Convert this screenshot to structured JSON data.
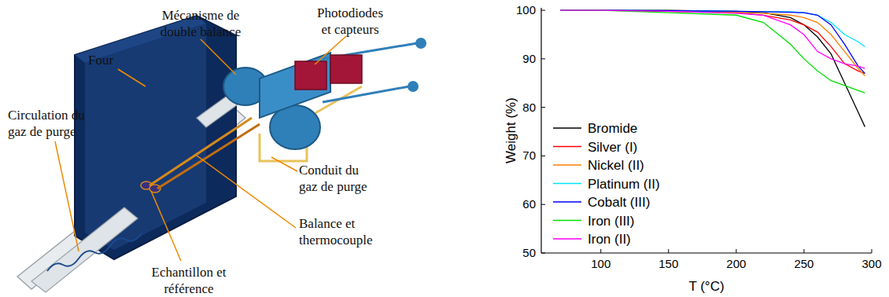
{
  "diagram": {
    "labels": [
      {
        "lines": [
          "Mécanisme de",
          "double balance"
        ]
      },
      {
        "lines": [
          "Photodiodes",
          "et capteurs"
        ]
      },
      {
        "lines": [
          "Four"
        ]
      },
      {
        "lines": [
          "Circulation du",
          "gaz de purge"
        ]
      },
      {
        "lines": [
          "Conduit du",
          "gaz de purge"
        ]
      },
      {
        "lines": [
          "Balance et",
          "thermocouple"
        ]
      },
      {
        "lines": [
          "Echantillon et",
          "référence"
        ]
      }
    ]
  },
  "chart_data": {
    "type": "line",
    "x_label": "T (°C)",
    "y_label": "Weight (%)",
    "x": [
      70,
      100,
      150,
      200,
      220,
      240,
      250,
      260,
      270,
      280,
      290,
      295
    ],
    "series": [
      {
        "name": "Bromide",
        "color": "#000000",
        "values": [
          100,
          100,
          100,
          99.8,
          99.5,
          98.5,
          97,
          94.5,
          91,
          85,
          79,
          76
        ]
      },
      {
        "name": "Silver (I)",
        "color": "#ff0000",
        "values": [
          100,
          100,
          99.8,
          99.5,
          99,
          98,
          97,
          95.5,
          92.5,
          89,
          87.5,
          87
        ]
      },
      {
        "name": "Nickel (II)",
        "color": "#ff8000",
        "values": [
          100,
          100,
          99.8,
          99.6,
          99.4,
          99,
          98.5,
          97.5,
          95,
          91.5,
          88,
          86.5
        ]
      },
      {
        "name": "Platinum (II)",
        "color": "#00e5ff",
        "values": [
          100,
          100,
          99.9,
          99.8,
          99.7,
          99.7,
          99.5,
          99,
          97.5,
          95,
          93.5,
          92.5
        ]
      },
      {
        "name": "Cobalt (III)",
        "color": "#0000ff",
        "values": [
          100,
          100,
          99.9,
          99.8,
          99.7,
          99.6,
          99.5,
          99,
          97,
          93,
          88.5,
          87
        ]
      },
      {
        "name": "Iron (III)",
        "color": "#00dd00",
        "values": [
          100,
          100,
          99.5,
          99,
          97.5,
          93,
          90,
          87.5,
          85.5,
          84.5,
          83.5,
          83
        ]
      },
      {
        "name": "Iron (II)",
        "color": "#ff00ff",
        "values": [
          100,
          100,
          99.8,
          99.4,
          99,
          97,
          95,
          91.5,
          90,
          89,
          88.5,
          88
        ]
      }
    ],
    "xlim": [
      56,
      300
    ],
    "xticks": [
      100,
      150,
      200,
      250,
      300
    ],
    "ylim": [
      50,
      100.5
    ],
    "yticks": [
      50,
      60,
      70,
      80,
      90,
      100
    ],
    "legend": "lower left",
    "grid": false
  }
}
